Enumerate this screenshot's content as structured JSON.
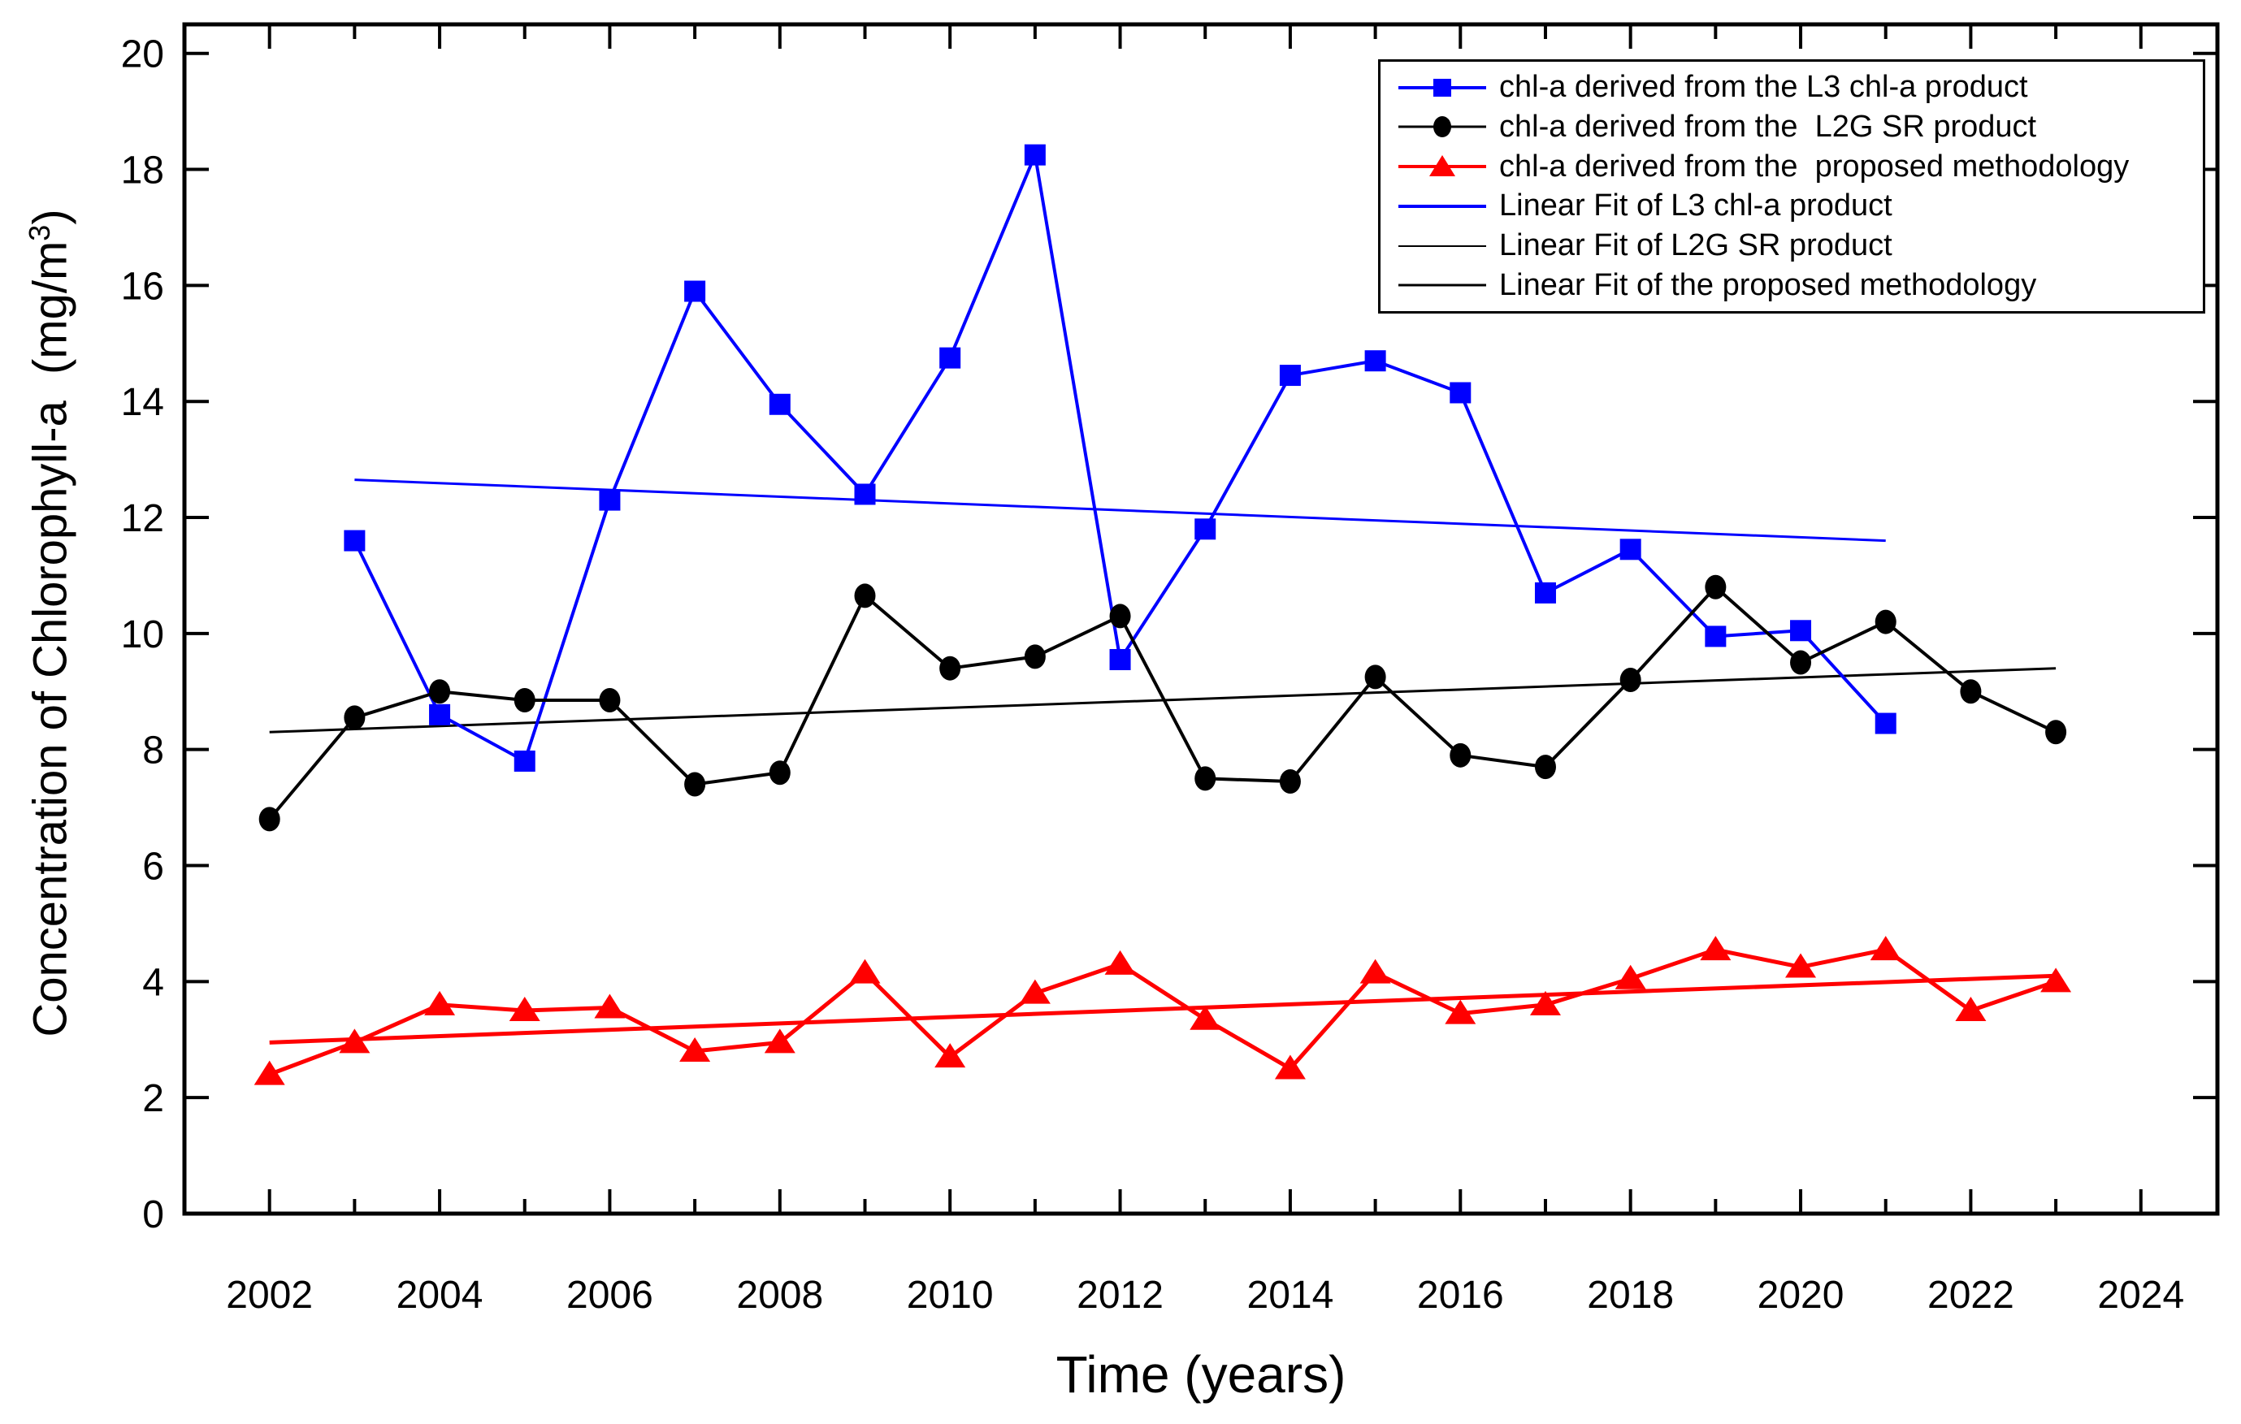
{
  "chart_data": {
    "type": "line",
    "title": "",
    "xlabel": "Time (years)",
    "ylabel_pre": "Concentration of Chlorophyll-a  (mg/m",
    "ylabel_sup": "3",
    "ylabel_post": ")",
    "x_range": [
      2001,
      2024.9
    ],
    "y_range": [
      0,
      20.5
    ],
    "x_ticks_major": [
      2002,
      2004,
      2006,
      2008,
      2010,
      2012,
      2014,
      2016,
      2018,
      2020,
      2022,
      2024
    ],
    "x_ticks_minor": [
      2003,
      2005,
      2007,
      2009,
      2011,
      2013,
      2015,
      2017,
      2019,
      2021,
      2023
    ],
    "y_ticks": [
      0,
      2,
      4,
      6,
      8,
      10,
      12,
      14,
      16,
      18,
      20
    ],
    "grid": false,
    "legend_position": "top-right",
    "colors": {
      "l3": "#0000ff",
      "l2g": "#000000",
      "proposed": "#ff0000"
    },
    "series": [
      {
        "id": "l3",
        "name": "chl-a derived from the L3 chl-a product",
        "color": "#0000ff",
        "marker": "square",
        "line_width": 4,
        "x": [
          2003,
          2004,
          2005,
          2006,
          2007,
          2008,
          2009,
          2010,
          2011,
          2012,
          2013,
          2014,
          2015,
          2016,
          2017,
          2018,
          2019,
          2020,
          2021
        ],
        "values": [
          11.6,
          8.6,
          7.8,
          12.3,
          15.9,
          13.95,
          12.4,
          14.75,
          18.25,
          9.55,
          11.8,
          14.45,
          14.7,
          14.15,
          10.7,
          11.45,
          9.95,
          10.05,
          8.45
        ]
      },
      {
        "id": "l2g",
        "name": "chl-a derived from the  L2G SR product",
        "color": "#000000",
        "marker": "circle",
        "line_width": 4,
        "x": [
          2002,
          2003,
          2004,
          2005,
          2006,
          2007,
          2008,
          2009,
          2010,
          2011,
          2012,
          2013,
          2014,
          2015,
          2016,
          2017,
          2018,
          2019,
          2020,
          2021,
          2022,
          2023
        ],
        "values": [
          6.8,
          8.55,
          9.0,
          8.85,
          8.85,
          7.4,
          7.6,
          10.65,
          9.4,
          9.6,
          10.3,
          7.5,
          7.45,
          9.25,
          7.9,
          7.7,
          9.2,
          10.8,
          9.5,
          10.2,
          9.0,
          8.3
        ]
      },
      {
        "id": "proposed",
        "name": "chl-a derived from the  proposed methodology",
        "color": "#ff0000",
        "marker": "triangle",
        "line_width": 5,
        "x": [
          2002,
          2003,
          2004,
          2005,
          2006,
          2007,
          2008,
          2009,
          2010,
          2011,
          2012,
          2013,
          2014,
          2015,
          2016,
          2017,
          2018,
          2019,
          2020,
          2021,
          2022,
          2023
        ],
        "values": [
          2.4,
          2.95,
          3.6,
          3.5,
          3.55,
          2.8,
          2.95,
          4.15,
          2.7,
          3.8,
          4.3,
          3.35,
          2.5,
          4.15,
          3.45,
          3.6,
          4.05,
          4.55,
          4.25,
          4.55,
          3.5,
          4.0
        ]
      }
    ],
    "fits": [
      {
        "id": "fit-l3",
        "name": "Linear Fit of L3 chl-a product",
        "color": "#0000ff",
        "line_width": 3,
        "x1": 2003,
        "y1": 12.65,
        "x2": 2021,
        "y2": 11.6
      },
      {
        "id": "fit-l2g",
        "name": "Linear Fit of L2G SR product",
        "color": "#000000",
        "line_width": 3,
        "x1": 2002,
        "y1": 8.3,
        "x2": 2023,
        "y2": 9.4
      },
      {
        "id": "fit-proposed",
        "name": "Linear Fit of the proposed methodology",
        "color": "#ff0000",
        "line_width": 5,
        "x1": 2002,
        "y1": 2.95,
        "x2": 2023,
        "y2": 4.1
      }
    ],
    "legend": [
      {
        "label": "chl-a derived from the L3 chl-a product",
        "line_color": "#0000ff",
        "line_width": 4,
        "marker": "square",
        "marker_color": "#0000ff"
      },
      {
        "label": "chl-a derived from the  L2G SR product",
        "line_color": "#000000",
        "line_width": 3,
        "marker": "circle",
        "marker_color": "#000000"
      },
      {
        "label": "chl-a derived from the  proposed methodology",
        "line_color": "#ff0000",
        "line_width": 4,
        "marker": "triangle",
        "marker_color": "#ff0000"
      },
      {
        "label": "Linear Fit of L3 chl-a product",
        "line_color": "#0000ff",
        "line_width": 4,
        "marker": "none",
        "marker_color": "#0000ff"
      },
      {
        "label": "Linear Fit of L2G SR product",
        "line_color": "#000000",
        "line_width": 2,
        "marker": "none",
        "marker_color": "#000000"
      },
      {
        "label": "Linear Fit of the proposed methodology",
        "line_color": "#000000",
        "line_width": 3,
        "marker": "none",
        "marker_color": "#000000"
      }
    ]
  }
}
